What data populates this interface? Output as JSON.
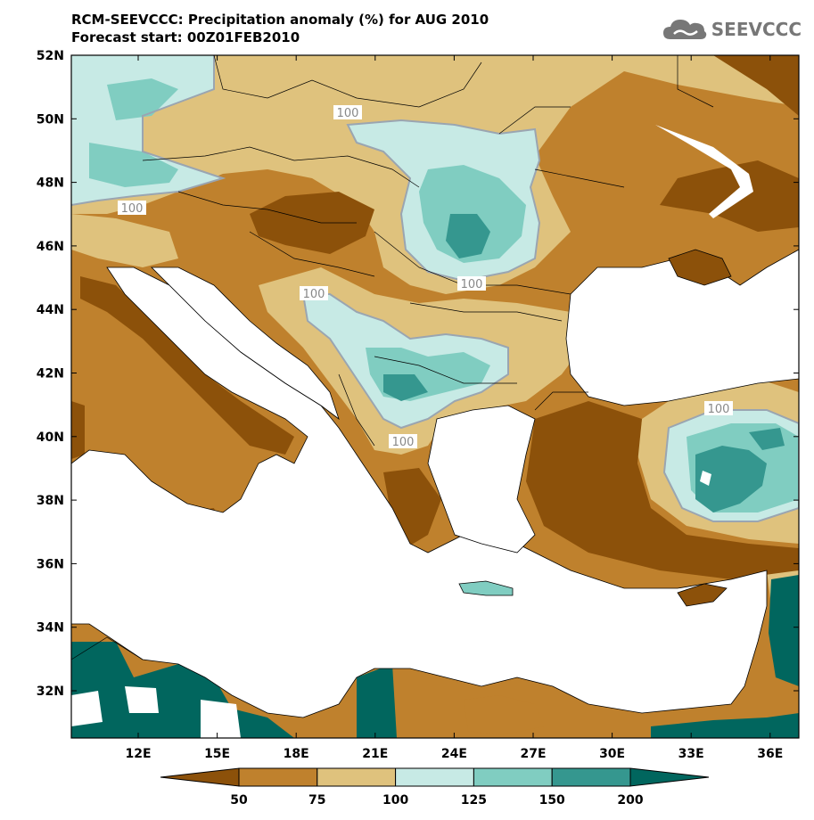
{
  "header": {
    "title": "RCM-SEEVCCC: Precipitation anomaly (%) for AUG 2010",
    "subtitle": "Forecast start: 00Z01FEB2010",
    "logo_text": "SEEVCCC"
  },
  "map": {
    "lat_labels": [
      "52N",
      "50N",
      "48N",
      "46N",
      "44N",
      "42N",
      "40N",
      "38N",
      "36N",
      "34N",
      "32N"
    ],
    "lon_labels": [
      "12E",
      "15E",
      "18E",
      "21E",
      "24E",
      "27E",
      "30E",
      "33E",
      "36E"
    ],
    "contour_labels": [
      "100",
      "100",
      "100",
      "100",
      "100",
      "100"
    ]
  },
  "colorbar": {
    "labels": [
      "50",
      "75",
      "100",
      "125",
      "150",
      "200"
    ],
    "colors": [
      "#8c510a",
      "#bf812d",
      "#dfc27d",
      "#c7eae5",
      "#80cdc1",
      "#35978f",
      "#01665e"
    ]
  },
  "colors": {
    "deep_brown": "#8c510a",
    "brown": "#bf812d",
    "tan": "#dfc27d",
    "light_teal": "#c7eae5",
    "teal": "#80cdc1",
    "dark_teal": "#35978f",
    "deepest_teal": "#01665e"
  }
}
